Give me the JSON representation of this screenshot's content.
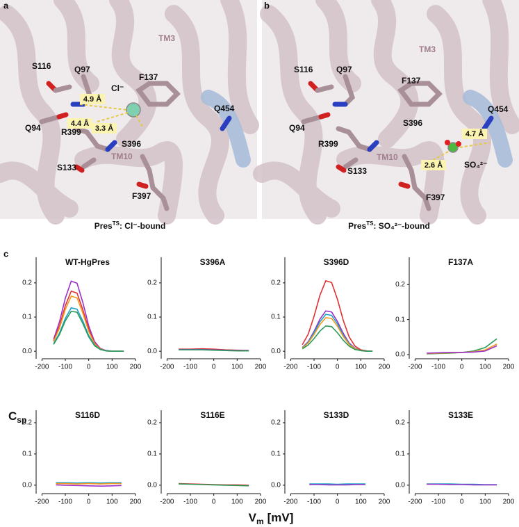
{
  "panels": {
    "a": {
      "letter": "a",
      "labels": [
        "TM3",
        "S116",
        "Q97",
        "F137",
        "Cl⁻",
        "Q454",
        "Q94",
        "R399",
        "S396",
        "TM10",
        "S133",
        "F397"
      ],
      "distances": [
        "4.9 Å",
        "4.4 Å",
        "3.3 Å"
      ],
      "caption": {
        "prefix": "Pres",
        "sup": "TS",
        "suffix": ": Cl⁻-bound"
      }
    },
    "b": {
      "letter": "b",
      "labels": [
        "TM3",
        "S116",
        "Q97",
        "F137",
        "Q454",
        "S396",
        "Q94",
        "R399",
        "SO₄²⁻",
        "TM10",
        "S133",
        "F397"
      ],
      "distances": [
        "4.7 Å",
        "2.6 Å"
      ],
      "caption": {
        "prefix": "Pres",
        "sup": "TS",
        "suffix": ": SO₄²⁻-bound"
      }
    },
    "c": {
      "letter": "c"
    }
  },
  "axis_labels": {
    "y": "C",
    "y_sub": "sp",
    "x": "V",
    "x_sub": "m",
    "x_unit": "[mV]"
  },
  "chart_data": [
    {
      "type": "line",
      "title": "WT-HgPres",
      "x": [
        -150,
        -125,
        -100,
        -75,
        -50,
        -25,
        0,
        25,
        50,
        75,
        100,
        125,
        150
      ],
      "series": [
        {
          "color": "#9b30c8",
          "values": [
            0.035,
            0.086,
            0.155,
            0.205,
            0.199,
            0.142,
            0.074,
            0.028,
            0.008,
            0.002,
            0,
            0,
            0
          ]
        },
        {
          "color": "#e03030",
          "values": [
            0.03,
            0.074,
            0.133,
            0.176,
            0.17,
            0.121,
            0.064,
            0.024,
            0.007,
            0.001,
            0,
            0,
            0
          ]
        },
        {
          "color": "#f39a1c",
          "values": [
            0.028,
            0.068,
            0.122,
            0.161,
            0.156,
            0.111,
            0.058,
            0.022,
            0.006,
            0.001,
            0,
            0,
            0
          ]
        },
        {
          "color": "#1fa0c8",
          "values": [
            0.022,
            0.053,
            0.096,
            0.127,
            0.123,
            0.088,
            0.046,
            0.018,
            0.005,
            0.001,
            0,
            0,
            0
          ]
        },
        {
          "color": "#2a9a5a",
          "values": [
            0.02,
            0.049,
            0.089,
            0.117,
            0.114,
            0.081,
            0.042,
            0.016,
            0.005,
            0.001,
            0,
            0,
            0
          ]
        }
      ],
      "xlim": [
        -225,
        215
      ],
      "ylim": [
        -0.022,
        0.275
      ],
      "xticks": [
        -200,
        -100,
        0,
        100,
        200
      ],
      "yticks": [
        {
          "value": 0,
          "label": "0.0"
        },
        {
          "value": 0.1,
          "label": "0.1"
        },
        {
          "value": 0.2,
          "label": "0.2"
        }
      ]
    },
    {
      "type": "line",
      "title": "S396A",
      "x": [
        -150,
        -100,
        -50,
        0,
        50,
        100,
        150
      ],
      "series": [
        {
          "color": "#e03030",
          "values": [
            0.006,
            0.006,
            0.007,
            0.006,
            0.004,
            0.003,
            0.002
          ]
        },
        {
          "color": "#9b30c8",
          "values": [
            0.005,
            0.005,
            0.005,
            0.004,
            0.003,
            0.002,
            0.002
          ]
        },
        {
          "color": "#2a9a5a",
          "values": [
            0.004,
            0.004,
            0.004,
            0.003,
            0.002,
            0.001,
            0.001
          ]
        }
      ],
      "xlim": [
        -225,
        215
      ],
      "ylim": [
        -0.022,
        0.275
      ],
      "xticks": [
        -200,
        -100,
        0,
        100,
        200
      ],
      "yticks": [
        {
          "value": 0,
          "label": "0.0"
        },
        {
          "value": 0.1,
          "label": "0.1"
        },
        {
          "value": 0.2,
          "label": "0.2"
        }
      ]
    },
    {
      "type": "line",
      "title": "S396D",
      "x": [
        -150,
        -125,
        -100,
        -75,
        -50,
        -25,
        0,
        25,
        50,
        75,
        100,
        125,
        150
      ],
      "series": [
        {
          "color": "#e03030",
          "values": [
            0.019,
            0.05,
            0.102,
            0.164,
            0.206,
            0.201,
            0.152,
            0.09,
            0.042,
            0.015,
            0.004,
            0.001,
            0
          ]
        },
        {
          "color": "#9b30c8",
          "values": [
            0.011,
            0.028,
            0.058,
            0.094,
            0.118,
            0.115,
            0.087,
            0.052,
            0.024,
            0.009,
            0.002,
            0,
            0
          ]
        },
        {
          "color": "#1fa0c8",
          "values": [
            0.01,
            0.026,
            0.054,
            0.086,
            0.108,
            0.105,
            0.08,
            0.047,
            0.022,
            0.008,
            0.002,
            0,
            0
          ]
        },
        {
          "color": "#f39a1c",
          "values": [
            0.009,
            0.024,
            0.049,
            0.078,
            0.098,
            0.096,
            0.073,
            0.043,
            0.02,
            0.007,
            0.002,
            0,
            0
          ]
        },
        {
          "color": "#2a9a5a",
          "values": [
            0.007,
            0.018,
            0.037,
            0.059,
            0.074,
            0.072,
            0.054,
            0.032,
            0.015,
            0.005,
            0.002,
            0,
            0
          ]
        }
      ],
      "xlim": [
        -225,
        215
      ],
      "ylim": [
        -0.022,
        0.275
      ],
      "xticks": [
        -200,
        -100,
        0,
        100,
        200
      ],
      "yticks": [
        {
          "value": 0,
          "label": "0.0"
        },
        {
          "value": 0.1,
          "label": "0.1"
        },
        {
          "value": 0.2,
          "label": "0.2"
        }
      ]
    },
    {
      "type": "line",
      "title": "F137A",
      "x": [
        -150,
        -100,
        -50,
        0,
        50,
        100,
        150
      ],
      "series": [
        {
          "color": "#2a9a5a",
          "values": [
            0.002,
            0.003,
            0.004,
            0.006,
            0.01,
            0.02,
            0.045
          ]
        },
        {
          "color": "#f39a1c",
          "values": [
            0.003,
            0.004,
            0.005,
            0.006,
            0.008,
            0.013,
            0.03
          ]
        },
        {
          "color": "#9b30c8",
          "values": [
            0.004,
            0.005,
            0.006,
            0.006,
            0.007,
            0.01,
            0.025
          ]
        }
      ],
      "xlim": [
        -225,
        215
      ],
      "ylim": [
        -0.012,
        0.278
      ],
      "xticks": [
        -200,
        -100,
        0,
        100,
        200
      ],
      "yticks": [
        {
          "value": 0,
          "label": "0.0"
        },
        {
          "value": 0.1,
          "label": "0.1"
        },
        {
          "value": 0.2,
          "label": "0.2"
        }
      ]
    },
    {
      "type": "line",
      "title": "S116D",
      "x": [
        -140,
        -100,
        -50,
        0,
        50,
        100,
        140
      ],
      "series": [
        {
          "color": "#1fa0c8",
          "values": [
            0.008,
            0.008,
            0.007,
            0.008,
            0.007,
            0.008,
            0.008
          ]
        },
        {
          "color": "#f39a1c",
          "values": [
            0.005,
            0.005,
            0.004,
            0.005,
            0.004,
            0.005,
            0.005
          ]
        },
        {
          "color": "#9b30c8",
          "values": [
            0.001,
            0.0,
            -0.001,
            -0.002,
            -0.003,
            -0.002,
            -0.001
          ]
        }
      ],
      "xlim": [
        -225,
        215
      ],
      "ylim": [
        -0.027,
        0.24
      ],
      "xticks": [
        -200,
        -100,
        0,
        100,
        200
      ],
      "yticks": [
        {
          "value": 0,
          "label": "0.0"
        },
        {
          "value": 0.1,
          "label": "0.1"
        },
        {
          "value": 0.2,
          "label": "0.2"
        }
      ]
    },
    {
      "type": "line",
      "title": "S116E",
      "x": [
        -150,
        -100,
        -50,
        0,
        50,
        100,
        150
      ],
      "series": [
        {
          "color": "#e03030",
          "values": [
            0.005,
            0.004,
            0.003,
            0.002,
            0.001,
            0.001,
            0.0
          ]
        },
        {
          "color": "#2a9a5a",
          "values": [
            0.004,
            0.003,
            0.002,
            0.001,
            0.0,
            -0.001,
            -0.002
          ]
        }
      ],
      "xlim": [
        -225,
        215
      ],
      "ylim": [
        -0.027,
        0.24
      ],
      "xticks": [
        -200,
        -100,
        0,
        100,
        200
      ],
      "yticks": [
        {
          "value": 0,
          "label": "0.0"
        },
        {
          "value": 0.1,
          "label": "0.1"
        },
        {
          "value": 0.2,
          "label": "0.2"
        }
      ]
    },
    {
      "type": "line",
      "title": "S133D",
      "x": [
        -120,
        -80,
        -40,
        0,
        40,
        80,
        120
      ],
      "series": [
        {
          "color": "#1fa0c8",
          "values": [
            0.004,
            0.004,
            0.004,
            0.003,
            0.004,
            0.004,
            0.004
          ]
        },
        {
          "color": "#9b30c8",
          "values": [
            0.002,
            0.002,
            0.001,
            0.001,
            0.001,
            0.002,
            0.002
          ]
        }
      ],
      "xlim": [
        -225,
        215
      ],
      "ylim": [
        -0.027,
        0.24
      ],
      "xticks": [
        -200,
        -100,
        0,
        100,
        200
      ],
      "yticks": [
        {
          "value": 0,
          "label": "0.0"
        },
        {
          "value": 0.1,
          "label": "0.1"
        },
        {
          "value": 0.2,
          "label": "0.2"
        }
      ]
    },
    {
      "type": "line",
      "title": "S133E",
      "x": [
        -150,
        -100,
        -50,
        0,
        50,
        100,
        150
      ],
      "series": [
        {
          "color": "#1fa0c8",
          "values": [
            0.004,
            0.004,
            0.004,
            0.003,
            0.003,
            0.002,
            0.002
          ]
        },
        {
          "color": "#9b30c8",
          "values": [
            0.003,
            0.003,
            0.002,
            0.002,
            0.001,
            0.001,
            0.001
          ]
        }
      ],
      "xlim": [
        -225,
        215
      ],
      "ylim": [
        -0.027,
        0.24
      ],
      "xticks": [
        -200,
        -100,
        0,
        100,
        200
      ],
      "yticks": [
        {
          "value": 0,
          "label": "0.0"
        },
        {
          "value": 0.1,
          "label": "0.1"
        },
        {
          "value": 0.2,
          "label": "0.2"
        }
      ]
    }
  ]
}
